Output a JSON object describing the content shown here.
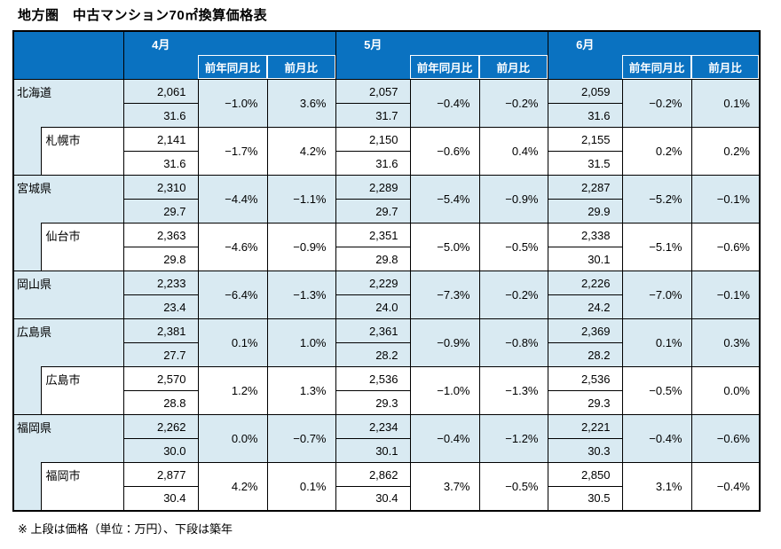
{
  "title": "地方圏　中古マンション70㎡換算価格表",
  "footnote": "※ 上段は価格（単位：万円）、下段は築年",
  "colors": {
    "header_blue": "#0a72c1",
    "row_blue": "#d9eaf2",
    "border": "#000000",
    "header_text": "#ffffff"
  },
  "header": {
    "months": [
      "4月",
      "5月",
      "6月"
    ],
    "yoy_label": "前年同月比",
    "mom_label": "前月比"
  },
  "rows": [
    {
      "name": "北海道",
      "type": "pref",
      "months": [
        {
          "price": "2,061",
          "age": "31.6",
          "yoy": "−1.0%",
          "mom": "3.6%"
        },
        {
          "price": "2,057",
          "age": "31.7",
          "yoy": "−0.4%",
          "mom": "−0.2%"
        },
        {
          "price": "2,059",
          "age": "31.6",
          "yoy": "−0.2%",
          "mom": "0.1%"
        }
      ]
    },
    {
      "name": "札幌市",
      "type": "city",
      "months": [
        {
          "price": "2,141",
          "age": "31.6",
          "yoy": "−1.7%",
          "mom": "4.2%"
        },
        {
          "price": "2,150",
          "age": "31.6",
          "yoy": "−0.6%",
          "mom": "0.4%"
        },
        {
          "price": "2,155",
          "age": "31.5",
          "yoy": "0.2%",
          "mom": "0.2%"
        }
      ]
    },
    {
      "name": "宮城県",
      "type": "pref",
      "months": [
        {
          "price": "2,310",
          "age": "29.7",
          "yoy": "−4.4%",
          "mom": "−1.1%"
        },
        {
          "price": "2,289",
          "age": "29.7",
          "yoy": "−5.4%",
          "mom": "−0.9%"
        },
        {
          "price": "2,287",
          "age": "29.9",
          "yoy": "−5.2%",
          "mom": "−0.1%"
        }
      ]
    },
    {
      "name": "仙台市",
      "type": "city",
      "months": [
        {
          "price": "2,363",
          "age": "29.8",
          "yoy": "−4.6%",
          "mom": "−0.9%"
        },
        {
          "price": "2,351",
          "age": "29.8",
          "yoy": "−5.0%",
          "mom": "−0.5%"
        },
        {
          "price": "2,338",
          "age": "30.1",
          "yoy": "−5.1%",
          "mom": "−0.6%"
        }
      ]
    },
    {
      "name": "岡山県",
      "type": "pref",
      "months": [
        {
          "price": "2,233",
          "age": "23.4",
          "yoy": "−6.4%",
          "mom": "−1.3%"
        },
        {
          "price": "2,229",
          "age": "24.0",
          "yoy": "−7.3%",
          "mom": "−0.2%"
        },
        {
          "price": "2,226",
          "age": "24.2",
          "yoy": "−7.0%",
          "mom": "−0.1%"
        }
      ]
    },
    {
      "name": "広島県",
      "type": "pref",
      "months": [
        {
          "price": "2,381",
          "age": "27.7",
          "yoy": "0.1%",
          "mom": "1.0%"
        },
        {
          "price": "2,361",
          "age": "28.2",
          "yoy": "−0.9%",
          "mom": "−0.8%"
        },
        {
          "price": "2,369",
          "age": "28.2",
          "yoy": "0.1%",
          "mom": "0.3%"
        }
      ]
    },
    {
      "name": "広島市",
      "type": "city",
      "months": [
        {
          "price": "2,570",
          "age": "28.8",
          "yoy": "1.2%",
          "mom": "1.3%"
        },
        {
          "price": "2,536",
          "age": "29.3",
          "yoy": "−1.0%",
          "mom": "−1.3%"
        },
        {
          "price": "2,536",
          "age": "29.3",
          "yoy": "−0.5%",
          "mom": "0.0%"
        }
      ]
    },
    {
      "name": "福岡県",
      "type": "pref",
      "months": [
        {
          "price": "2,262",
          "age": "30.0",
          "yoy": "0.0%",
          "mom": "−0.7%"
        },
        {
          "price": "2,234",
          "age": "30.1",
          "yoy": "−0.4%",
          "mom": "−1.2%"
        },
        {
          "price": "2,221",
          "age": "30.3",
          "yoy": "−0.4%",
          "mom": "−0.6%"
        }
      ]
    },
    {
      "name": "福岡市",
      "type": "city",
      "months": [
        {
          "price": "2,877",
          "age": "30.4",
          "yoy": "4.2%",
          "mom": "0.1%"
        },
        {
          "price": "2,862",
          "age": "30.4",
          "yoy": "3.7%",
          "mom": "−0.5%"
        },
        {
          "price": "2,850",
          "age": "30.5",
          "yoy": "3.1%",
          "mom": "−0.4%"
        }
      ]
    }
  ]
}
